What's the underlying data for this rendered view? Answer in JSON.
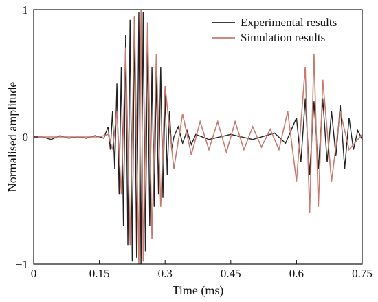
{
  "chart_data": {
    "type": "line",
    "xlabel": "Time (ms)",
    "ylabel": "Normalised amplitude",
    "xlim": [
      0,
      0.75
    ],
    "ylim": [
      -1,
      1
    ],
    "x_ticks": [
      0,
      0.15,
      0.3,
      0.45,
      0.6,
      0.75
    ],
    "x_tick_labels": [
      "0",
      "0.15",
      "0.3",
      "0.45",
      "0.6",
      "0.75"
    ],
    "y_ticks": [
      -1,
      0,
      1
    ],
    "y_tick_labels": [
      "−1",
      "0",
      "1"
    ],
    "grid": false,
    "legend_position": "top-right",
    "series": [
      {
        "name": "Experimental results",
        "color": "#222222",
        "description_points": [
          [
            0.0,
            0.0
          ],
          [
            0.02,
            0.0
          ],
          [
            0.04,
            -0.02
          ],
          [
            0.06,
            0.01
          ],
          [
            0.08,
            -0.01
          ],
          [
            0.1,
            0.0
          ],
          [
            0.12,
            -0.01
          ],
          [
            0.14,
            0.01
          ],
          [
            0.16,
            -0.01
          ],
          [
            0.17,
            0.08
          ],
          [
            0.175,
            -0.1
          ],
          [
            0.18,
            0.2
          ],
          [
            0.185,
            -0.25
          ],
          [
            0.19,
            0.42
          ],
          [
            0.195,
            -0.45
          ],
          [
            0.2,
            0.55
          ],
          [
            0.205,
            -0.7
          ],
          [
            0.21,
            0.8
          ],
          [
            0.215,
            -0.85
          ],
          [
            0.22,
            0.92
          ],
          [
            0.225,
            -0.98
          ],
          [
            0.23,
            0.95
          ],
          [
            0.235,
            -0.95
          ],
          [
            0.24,
            0.98
          ],
          [
            0.245,
            -1.0
          ],
          [
            0.25,
            0.98
          ],
          [
            0.255,
            -0.9
          ],
          [
            0.26,
            0.8
          ],
          [
            0.265,
            -0.7
          ],
          [
            0.27,
            0.55
          ],
          [
            0.275,
            -0.55
          ],
          [
            0.28,
            0.5
          ],
          [
            0.285,
            -0.45
          ],
          [
            0.29,
            0.55
          ],
          [
            0.295,
            -0.48
          ],
          [
            0.3,
            0.35
          ],
          [
            0.305,
            -0.3
          ],
          [
            0.31,
            0.2
          ],
          [
            0.315,
            -0.1
          ],
          [
            0.32,
            0.0
          ],
          [
            0.33,
            0.08
          ],
          [
            0.34,
            -0.05
          ],
          [
            0.35,
            0.05
          ],
          [
            0.36,
            -0.06
          ],
          [
            0.37,
            0.02
          ],
          [
            0.4,
            -0.02
          ],
          [
            0.45,
            0.02
          ],
          [
            0.5,
            -0.02
          ],
          [
            0.55,
            0.03
          ],
          [
            0.575,
            -0.05
          ],
          [
            0.6,
            0.15
          ],
          [
            0.61,
            -0.2
          ],
          [
            0.62,
            0.3
          ],
          [
            0.63,
            -0.3
          ],
          [
            0.64,
            0.28
          ],
          [
            0.65,
            -0.25
          ],
          [
            0.66,
            0.3
          ],
          [
            0.67,
            -0.2
          ],
          [
            0.68,
            0.2
          ],
          [
            0.69,
            -0.15
          ],
          [
            0.7,
            0.25
          ],
          [
            0.71,
            -0.25
          ],
          [
            0.72,
            0.15
          ],
          [
            0.73,
            -0.1
          ],
          [
            0.74,
            0.05
          ],
          [
            0.75,
            -0.02
          ]
        ]
      },
      {
        "name": "Simulation results",
        "color": "#c87a6e",
        "description_points": [
          [
            0.0,
            0.0
          ],
          [
            0.1,
            0.0
          ],
          [
            0.15,
            0.0
          ],
          [
            0.17,
            0.02
          ],
          [
            0.18,
            -0.1
          ],
          [
            0.19,
            0.2
          ],
          [
            0.2,
            -0.45
          ],
          [
            0.21,
            0.7
          ],
          [
            0.22,
            -0.85
          ],
          [
            0.23,
            0.95
          ],
          [
            0.24,
            -1.0
          ],
          [
            0.245,
            1.0
          ],
          [
            0.25,
            -0.98
          ],
          [
            0.26,
            0.9
          ],
          [
            0.27,
            -0.8
          ],
          [
            0.28,
            0.65
          ],
          [
            0.29,
            -0.55
          ],
          [
            0.3,
            0.4
          ],
          [
            0.32,
            -0.25
          ],
          [
            0.34,
            0.18
          ],
          [
            0.36,
            -0.14
          ],
          [
            0.38,
            0.12
          ],
          [
            0.4,
            -0.1
          ],
          [
            0.42,
            0.12
          ],
          [
            0.44,
            -0.12
          ],
          [
            0.46,
            0.12
          ],
          [
            0.48,
            -0.1
          ],
          [
            0.5,
            0.08
          ],
          [
            0.52,
            -0.08
          ],
          [
            0.54,
            0.06
          ],
          [
            0.56,
            -0.1
          ],
          [
            0.58,
            0.2
          ],
          [
            0.6,
            -0.35
          ],
          [
            0.62,
            0.55
          ],
          [
            0.63,
            -0.6
          ],
          [
            0.64,
            0.65
          ],
          [
            0.65,
            -0.55
          ],
          [
            0.66,
            0.45
          ],
          [
            0.68,
            -0.35
          ],
          [
            0.7,
            0.2
          ],
          [
            0.72,
            -0.1
          ],
          [
            0.75,
            0.02
          ]
        ]
      }
    ]
  }
}
